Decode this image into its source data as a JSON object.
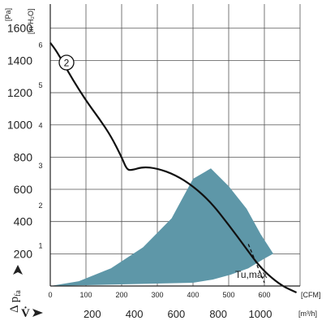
{
  "chart_data": {
    "type": "line",
    "title": "",
    "units": {
      "pressure_left": "[Pa]",
      "pressure_right": "[in H₂O]",
      "flow_cfm": "[CFM]",
      "flow_m3h": "[m³/h]"
    },
    "y_axis_symbol": "Δ p",
    "y_axis_subscript": "fa",
    "x_axis_symbol": "V̇",
    "x_range_cfm": [
      0,
      700
    ],
    "y_range_pa": [
      0,
      1750
    ],
    "grid": true,
    "ticks": {
      "pa": [
        "200",
        "400",
        "600",
        "800",
        "1000",
        "1200",
        "1400",
        "1600"
      ],
      "in_h2o": [
        "1",
        "2",
        "3",
        "4",
        "5",
        "6"
      ],
      "cfm": [
        "0",
        "100",
        "200",
        "300",
        "400",
        "500",
        "600"
      ],
      "m3h": [
        "200",
        "400",
        "600",
        "800",
        "1000"
      ]
    },
    "series": [
      {
        "label": "2",
        "color": "#111111",
        "x": [
          0,
          20,
          50,
          80,
          110,
          140,
          170,
          200,
          215,
          230,
          260,
          300,
          350,
          400,
          450,
          500,
          550,
          580,
          610,
          650,
          690
        ],
        "y": [
          1510,
          1450,
          1330,
          1220,
          1120,
          1030,
          930,
          800,
          720,
          720,
          740,
          730,
          690,
          620,
          520,
          380,
          230,
          140,
          70,
          0,
          -50
        ]
      }
    ],
    "operating_area": {
      "color": "#5e97a8",
      "x": [
        0,
        80,
        170,
        260,
        340,
        400,
        450,
        500,
        550,
        590,
        625,
        600,
        555,
        505,
        455,
        400,
        0
      ],
      "y": [
        0,
        30,
        110,
        240,
        420,
        665,
        730,
        620,
        480,
        320,
        200,
        170,
        110,
        70,
        40,
        20,
        0
      ]
    },
    "annotation": {
      "text": "Tu,max",
      "dashed_line": {
        "x": [
          555,
          600
        ],
        "y": [
          260,
          20
        ]
      }
    }
  }
}
